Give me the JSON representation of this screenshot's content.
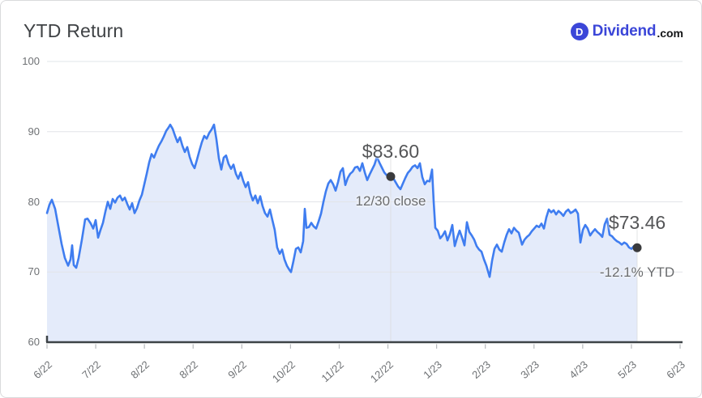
{
  "header": {
    "title": "YTD Return",
    "logo": {
      "icon_letter": "D",
      "name": "Dividend",
      "tld": ".com"
    }
  },
  "colors": {
    "line": "#3f7df0",
    "fill": "#e4ebfa",
    "grid": "#e2e4e8",
    "axis": "#3d4347",
    "tick": "#b7babd",
    "marker": "#3a3b3d",
    "axis_label": "#6e7174",
    "logo_blue": "#3b46d8"
  },
  "chart_data": {
    "type": "area",
    "title": "YTD Return",
    "ylim": [
      60,
      100
    ],
    "y_ticks": [
      100,
      90,
      80,
      70,
      60
    ],
    "x_tick_labels": [
      "6/22",
      "7/22",
      "8/22",
      "8/22",
      "9/22",
      "10/22",
      "11/22",
      "12/22",
      "1/23",
      "2/23",
      "3/23",
      "4/23",
      "5/23",
      "6/23"
    ],
    "grid": true,
    "annotations": [
      {
        "t": 0.5824,
        "value": 83.6,
        "label": "$83.60",
        "sublabel": "12/30 close"
      },
      {
        "t": 1.0,
        "value": 73.46,
        "label": "$73.46",
        "sublabel": "-12.1% YTD"
      }
    ],
    "series": [
      {
        "name": "price",
        "points": [
          [
            0,
            78.4
          ],
          [
            0.0041,
            79.6
          ],
          [
            0.0082,
            80.3
          ],
          [
            0.0137,
            79
          ],
          [
            0.0192,
            76.5
          ],
          [
            0.0247,
            74
          ],
          [
            0.0302,
            72
          ],
          [
            0.0357,
            70.9
          ],
          [
            0.0398,
            71.8
          ],
          [
            0.0426,
            73.8
          ],
          [
            0.0453,
            71
          ],
          [
            0.0495,
            70.6
          ],
          [
            0.0536,
            72
          ],
          [
            0.0591,
            74.6
          ],
          [
            0.0646,
            77.5
          ],
          [
            0.0687,
            77.6
          ],
          [
            0.0742,
            76.9
          ],
          [
            0.0783,
            76.2
          ],
          [
            0.0824,
            77.4
          ],
          [
            0.0865,
            74.9
          ],
          [
            0.0907,
            76
          ],
          [
            0.0948,
            77
          ],
          [
            0.0989,
            78.6
          ],
          [
            0.103,
            80
          ],
          [
            0.1071,
            79
          ],
          [
            0.1113,
            80.4
          ],
          [
            0.1154,
            79.9
          ],
          [
            0.1195,
            80.6
          ],
          [
            0.1236,
            80.9
          ],
          [
            0.1277,
            80.2
          ],
          [
            0.1319,
            80.6
          ],
          [
            0.136,
            79.7
          ],
          [
            0.1401,
            78.9
          ],
          [
            0.1442,
            79.8
          ],
          [
            0.1484,
            78.4
          ],
          [
            0.1525,
            79.1
          ],
          [
            0.1566,
            80.2
          ],
          [
            0.1607,
            81
          ],
          [
            0.1648,
            82.5
          ],
          [
            0.169,
            84
          ],
          [
            0.1731,
            85.6
          ],
          [
            0.1772,
            86.8
          ],
          [
            0.1813,
            86.3
          ],
          [
            0.1854,
            87.2
          ],
          [
            0.1896,
            88
          ],
          [
            0.1937,
            88.6
          ],
          [
            0.1978,
            89.3
          ],
          [
            0.2019,
            90.1
          ],
          [
            0.206,
            90.6
          ],
          [
            0.2088,
            91
          ],
          [
            0.2129,
            90.4
          ],
          [
            0.217,
            89.4
          ],
          [
            0.2212,
            88.5
          ],
          [
            0.2253,
            89.2
          ],
          [
            0.2294,
            88
          ],
          [
            0.2335,
            87.1
          ],
          [
            0.2376,
            87.8
          ],
          [
            0.2418,
            86.4
          ],
          [
            0.2459,
            85.4
          ],
          [
            0.25,
            84.8
          ],
          [
            0.2541,
            86
          ],
          [
            0.2582,
            87.3
          ],
          [
            0.2623,
            88.5
          ],
          [
            0.2665,
            89.4
          ],
          [
            0.2706,
            89
          ],
          [
            0.2747,
            89.8
          ],
          [
            0.2788,
            90.3
          ],
          [
            0.2829,
            91
          ],
          [
            0.2871,
            88.9
          ],
          [
            0.2912,
            86.2
          ],
          [
            0.2953,
            84.6
          ],
          [
            0.2994,
            86.3
          ],
          [
            0.3035,
            86.6
          ],
          [
            0.3077,
            85.4
          ],
          [
            0.3118,
            84.7
          ],
          [
            0.3159,
            85.3
          ],
          [
            0.32,
            84
          ],
          [
            0.3241,
            83.3
          ],
          [
            0.3282,
            84.2
          ],
          [
            0.3324,
            83
          ],
          [
            0.3365,
            82.1
          ],
          [
            0.3406,
            82.8
          ],
          [
            0.3447,
            81.2
          ],
          [
            0.3488,
            80.2
          ],
          [
            0.353,
            80.9
          ],
          [
            0.3571,
            79.8
          ],
          [
            0.3612,
            80.8
          ],
          [
            0.3653,
            79.4
          ],
          [
            0.3694,
            78.4
          ],
          [
            0.3736,
            77.9
          ],
          [
            0.3777,
            78.9
          ],
          [
            0.3818,
            77.4
          ],
          [
            0.3859,
            76
          ],
          [
            0.39,
            73.5
          ],
          [
            0.3942,
            72.6
          ],
          [
            0.3983,
            73.2
          ],
          [
            0.4024,
            71.8
          ],
          [
            0.4065,
            70.9
          ],
          [
            0.4107,
            70.3
          ],
          [
            0.4134,
            70
          ],
          [
            0.4175,
            71.5
          ],
          [
            0.4217,
            73.3
          ],
          [
            0.4258,
            73.5
          ],
          [
            0.4299,
            72.8
          ],
          [
            0.434,
            74.4
          ],
          [
            0.4368,
            79
          ],
          [
            0.4395,
            76.3
          ],
          [
            0.4437,
            76.4
          ],
          [
            0.4478,
            77
          ],
          [
            0.4519,
            76.5
          ],
          [
            0.456,
            76.2
          ],
          [
            0.4601,
            77.2
          ],
          [
            0.4643,
            78.3
          ],
          [
            0.4684,
            80
          ],
          [
            0.4725,
            81.5
          ],
          [
            0.4766,
            82.6
          ],
          [
            0.4808,
            83.1
          ],
          [
            0.4849,
            82.5
          ],
          [
            0.489,
            81.6
          ],
          [
            0.4931,
            82.8
          ],
          [
            0.4973,
            84.3
          ],
          [
            0.5014,
            84.8
          ],
          [
            0.5055,
            82.4
          ],
          [
            0.5096,
            83.4
          ],
          [
            0.5137,
            84
          ],
          [
            0.5179,
            84.3
          ],
          [
            0.522,
            84.9
          ],
          [
            0.5261,
            85
          ],
          [
            0.5302,
            84.4
          ],
          [
            0.5344,
            85.5
          ],
          [
            0.5385,
            84.2
          ],
          [
            0.5426,
            83.1
          ],
          [
            0.5467,
            83.9
          ],
          [
            0.5508,
            84.6
          ],
          [
            0.555,
            85.3
          ],
          [
            0.5591,
            86.4
          ],
          [
            0.5632,
            85.6
          ],
          [
            0.5673,
            84.9
          ],
          [
            0.5714,
            84.2
          ],
          [
            0.5756,
            83.8
          ],
          [
            0.5797,
            83.7
          ],
          [
            0.5824,
            83.6
          ],
          [
            0.5866,
            83.4
          ],
          [
            0.5907,
            82.8
          ],
          [
            0.5948,
            82.2
          ],
          [
            0.5989,
            81.8
          ],
          [
            0.603,
            82.6
          ],
          [
            0.6072,
            83.4
          ],
          [
            0.6113,
            84.1
          ],
          [
            0.6154,
            84.5
          ],
          [
            0.6195,
            85
          ],
          [
            0.6236,
            85.2
          ],
          [
            0.6278,
            84.8
          ],
          [
            0.6319,
            85.5
          ],
          [
            0.636,
            83.5
          ],
          [
            0.6401,
            82.5
          ],
          [
            0.6442,
            83
          ],
          [
            0.6484,
            82.9
          ],
          [
            0.6525,
            84.6
          ],
          [
            0.6552,
            80
          ],
          [
            0.658,
            76.3
          ],
          [
            0.6621,
            75.9
          ],
          [
            0.6662,
            74.8
          ],
          [
            0.6703,
            75.2
          ],
          [
            0.6745,
            75.8
          ],
          [
            0.6786,
            74.5
          ],
          [
            0.6827,
            75.4
          ],
          [
            0.6868,
            76.7
          ],
          [
            0.6909,
            73.7
          ],
          [
            0.6951,
            74.9
          ],
          [
            0.6992,
            75.9
          ],
          [
            0.7033,
            74.9
          ],
          [
            0.7074,
            73.8
          ],
          [
            0.7115,
            77.1
          ],
          [
            0.7157,
            75.7
          ],
          [
            0.7198,
            75.2
          ],
          [
            0.7239,
            74.6
          ],
          [
            0.728,
            73.7
          ],
          [
            0.7321,
            73.2
          ],
          [
            0.7363,
            72.9
          ],
          [
            0.7404,
            71.8
          ],
          [
            0.7445,
            70.9
          ],
          [
            0.75,
            69.3
          ],
          [
            0.7541,
            71.6
          ],
          [
            0.7582,
            73.3
          ],
          [
            0.7623,
            73.9
          ],
          [
            0.7665,
            73.2
          ],
          [
            0.7706,
            72.9
          ],
          [
            0.7747,
            74.2
          ],
          [
            0.7788,
            75.3
          ],
          [
            0.7829,
            76.1
          ],
          [
            0.7871,
            75.5
          ],
          [
            0.7912,
            76.3
          ],
          [
            0.7953,
            75.9
          ],
          [
            0.7994,
            75.6
          ],
          [
            0.8049,
            73.9
          ],
          [
            0.809,
            74.6
          ],
          [
            0.8132,
            75
          ],
          [
            0.8173,
            75.3
          ],
          [
            0.8214,
            75.8
          ],
          [
            0.8255,
            76.2
          ],
          [
            0.8297,
            76.6
          ],
          [
            0.8338,
            76.4
          ],
          [
            0.8379,
            76.9
          ],
          [
            0.842,
            76.2
          ],
          [
            0.8462,
            77.8
          ],
          [
            0.8503,
            78.9
          ],
          [
            0.8544,
            78.5
          ],
          [
            0.8585,
            78.8
          ],
          [
            0.8626,
            78.2
          ],
          [
            0.8668,
            78.7
          ],
          [
            0.8709,
            78.4
          ],
          [
            0.875,
            78
          ],
          [
            0.8791,
            78.6
          ],
          [
            0.8832,
            78.9
          ],
          [
            0.8874,
            78.4
          ],
          [
            0.8915,
            78.6
          ],
          [
            0.8956,
            78.9
          ],
          [
            0.8997,
            78.3
          ],
          [
            0.9038,
            74.2
          ],
          [
            0.908,
            76
          ],
          [
            0.9121,
            76.7
          ],
          [
            0.9162,
            76.2
          ],
          [
            0.9203,
            75.2
          ],
          [
            0.9244,
            75.7
          ],
          [
            0.9286,
            76.1
          ],
          [
            0.9327,
            75.7
          ],
          [
            0.9368,
            75.4
          ],
          [
            0.9409,
            75
          ],
          [
            0.9451,
            76.8
          ],
          [
            0.9492,
            77.6
          ],
          [
            0.9533,
            75.3
          ],
          [
            0.9574,
            75.1
          ],
          [
            0.9615,
            74.7
          ],
          [
            0.9657,
            74.4
          ],
          [
            0.9698,
            74.2
          ],
          [
            0.9739,
            73.9
          ],
          [
            0.978,
            74.2
          ],
          [
            0.9821,
            74
          ],
          [
            0.9863,
            73.5
          ],
          [
            0.9904,
            73.3
          ],
          [
            0.9945,
            73.7
          ],
          [
            1,
            73.46
          ]
        ]
      }
    ]
  }
}
